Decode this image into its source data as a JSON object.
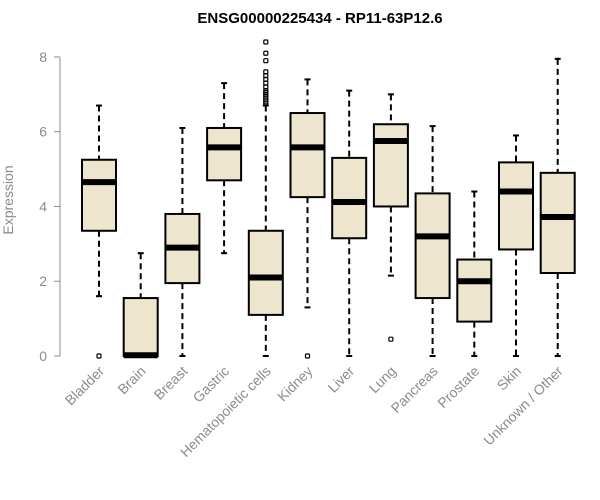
{
  "chart_data": {
    "type": "boxplot",
    "title": "ENSG00000225434 - RP11-63P12.6",
    "xlabel": "",
    "ylabel": "Expression",
    "ylim": [
      0,
      8.4
    ],
    "yticks": [
      0,
      2,
      4,
      6,
      8
    ],
    "grid": false,
    "box_fill": "#ede5cd",
    "categories": [
      "Bladder",
      "Brain",
      "Breast",
      "Gastric",
      "Hematopoietic cells",
      "Kidney",
      "Liver",
      "Lung",
      "Pancreas",
      "Prostate",
      "Skin",
      "Unknown / Other"
    ],
    "boxes": [
      {
        "name": "Bladder",
        "whisker_low": 1.6,
        "q1": 3.35,
        "median": 4.65,
        "q3": 5.25,
        "whisker_high": 6.7,
        "outliers": [
          0.0
        ]
      },
      {
        "name": "Brain",
        "whisker_low": 0.0,
        "q1": 0.0,
        "median": 0.02,
        "q3": 1.55,
        "whisker_high": 2.75,
        "outliers": []
      },
      {
        "name": "Breast",
        "whisker_low": 0.0,
        "q1": 1.95,
        "median": 2.9,
        "q3": 3.8,
        "whisker_high": 6.1,
        "outliers": []
      },
      {
        "name": "Gastric",
        "whisker_low": 2.75,
        "q1": 4.7,
        "median": 5.58,
        "q3": 6.1,
        "whisker_high": 7.3,
        "outliers": []
      },
      {
        "name": "Hematopoietic cells",
        "whisker_low": 0.0,
        "q1": 1.1,
        "median": 2.1,
        "q3": 3.35,
        "whisker_high": 6.7,
        "outliers": [
          6.75,
          6.8,
          6.85,
          6.9,
          6.95,
          7.0,
          7.05,
          7.1,
          7.2,
          7.3,
          7.4,
          7.5,
          7.6,
          7.9,
          8.1,
          8.4
        ]
      },
      {
        "name": "Kidney",
        "whisker_low": 1.3,
        "q1": 4.25,
        "median": 5.58,
        "q3": 6.5,
        "whisker_high": 7.4,
        "outliers": [
          0.0
        ]
      },
      {
        "name": "Liver",
        "whisker_low": 0.0,
        "q1": 3.15,
        "median": 4.12,
        "q3": 5.3,
        "whisker_high": 7.1,
        "outliers": []
      },
      {
        "name": "Lung",
        "whisker_low": 2.15,
        "q1": 4.0,
        "median": 5.75,
        "q3": 6.2,
        "whisker_high": 7.0,
        "outliers": [
          0.45
        ]
      },
      {
        "name": "Pancreas",
        "whisker_low": 0.0,
        "q1": 1.55,
        "median": 3.2,
        "q3": 4.35,
        "whisker_high": 6.15,
        "outliers": []
      },
      {
        "name": "Prostate",
        "whisker_low": 0.0,
        "q1": 0.92,
        "median": 2.0,
        "q3": 2.58,
        "whisker_high": 4.4,
        "outliers": []
      },
      {
        "name": "Skin",
        "whisker_low": 0.0,
        "q1": 2.85,
        "median": 4.4,
        "q3": 5.18,
        "whisker_high": 5.9,
        "outliers": []
      },
      {
        "name": "Unknown / Other",
        "whisker_low": 0.0,
        "q1": 2.22,
        "median": 3.72,
        "q3": 4.9,
        "whisker_high": 7.95,
        "outliers": []
      }
    ]
  }
}
